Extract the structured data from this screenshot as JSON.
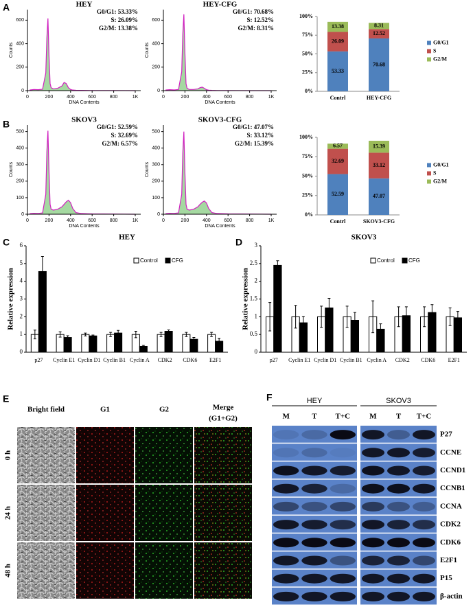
{
  "panel_labels": [
    "A",
    "B",
    "C",
    "D",
    "E",
    "F"
  ],
  "chart_data": [
    {
      "type": "flow",
      "title": "HEY",
      "annotations": [
        "G0/G1: 53.33%",
        "S: 26.09%",
        "G2/M: 13.38%"
      ],
      "x_label": "DNA Contents",
      "y_label": "Counts",
      "x": [
        20,
        60,
        100,
        140,
        170,
        180,
        190,
        200,
        210,
        220,
        240,
        280,
        320,
        340,
        360,
        380,
        400,
        420,
        450,
        500,
        600,
        800,
        1000
      ],
      "values": [
        5,
        10,
        8,
        12,
        150,
        450,
        615,
        300,
        60,
        25,
        15,
        20,
        40,
        70,
        60,
        25,
        10,
        5,
        3,
        2,
        1,
        1,
        0
      ],
      "xlim": [
        0,
        1000
      ],
      "xticks": [
        0,
        200,
        400,
        600,
        800,
        {
          "value": 1000,
          "label": "1K"
        }
      ],
      "ylim": [
        0,
        690
      ],
      "yticks": [
        0,
        200,
        400,
        600
      ]
    },
    {
      "type": "flow",
      "title": "HEY-CFG",
      "annotations": [
        "G0/G1: 70.68%",
        "S: 12.52%",
        "G2/M: 8.31%"
      ],
      "x_label": "DNA Contents",
      "y_label": "Counts",
      "x": [
        20,
        60,
        100,
        140,
        170,
        180,
        190,
        200,
        210,
        220,
        240,
        280,
        320,
        340,
        360,
        380,
        400,
        420,
        450,
        500,
        600,
        800,
        1000
      ],
      "values": [
        5,
        8,
        6,
        10,
        160,
        480,
        650,
        320,
        60,
        20,
        10,
        10,
        15,
        25,
        30,
        20,
        8,
        4,
        2,
        1,
        1,
        0,
        0
      ],
      "xlim": [
        0,
        1000
      ],
      "xticks": [
        0,
        200,
        400,
        600,
        800,
        {
          "value": 1000,
          "label": "1K"
        }
      ],
      "ylim": [
        0,
        690
      ],
      "yticks": [
        0,
        200,
        400,
        600
      ]
    },
    {
      "type": "stacked_bar",
      "categories": [
        "Contrl",
        "HEY-CFG"
      ],
      "legend": "right",
      "series": [
        {
          "name": "G0/G1",
          "color": "#4f81bd",
          "values": [
            53.33,
            70.68
          ]
        },
        {
          "name": "S",
          "color": "#c0504d",
          "values": [
            26.09,
            12.52
          ]
        },
        {
          "name": "G2/M",
          "color": "#9bbb59",
          "values": [
            13.38,
            8.31
          ]
        }
      ],
      "ylim": [
        0,
        100
      ],
      "yticks": [
        {
          "value": 0,
          "label": "0%"
        },
        {
          "value": 25,
          "label": "25%"
        },
        {
          "value": 50,
          "label": "50%"
        },
        {
          "value": 75,
          "label": "75%"
        },
        {
          "value": 100,
          "label": "100%"
        }
      ]
    },
    {
      "type": "flow",
      "title": "SKOV3",
      "annotations": [
        "G0/G1: 52.59%",
        "S: 32.69%",
        "G2/M: 6.57%"
      ],
      "x_label": "DNA Contents",
      "y_label": "Counts",
      "x": [
        20,
        60,
        100,
        140,
        170,
        180,
        190,
        200,
        210,
        220,
        240,
        280,
        320,
        340,
        360,
        380,
        400,
        420,
        450,
        500,
        600,
        800,
        1000
      ],
      "values": [
        3,
        6,
        5,
        8,
        120,
        380,
        505,
        260,
        60,
        30,
        25,
        30,
        45,
        60,
        75,
        85,
        70,
        35,
        10,
        4,
        2,
        1,
        0
      ],
      "xlim": [
        0,
        1000
      ],
      "xticks": [
        0,
        200,
        400,
        600,
        800,
        {
          "value": 1000,
          "label": "1K"
        }
      ],
      "ylim": [
        0,
        540
      ],
      "yticks": [
        0,
        100,
        200,
        300,
        400,
        500
      ]
    },
    {
      "type": "flow",
      "title": "SKOV3-CFG",
      "annotations": [
        "G0/G1: 47.07%",
        "S: 33.12%",
        "G2/M: 15.39%"
      ],
      "x_label": "DNA Contents",
      "y_label": "Counts",
      "x": [
        20,
        60,
        100,
        140,
        170,
        180,
        190,
        200,
        210,
        220,
        240,
        280,
        320,
        340,
        360,
        380,
        400,
        420,
        450,
        500,
        600,
        800,
        1000
      ],
      "values": [
        3,
        6,
        5,
        8,
        120,
        370,
        500,
        250,
        60,
        30,
        25,
        30,
        45,
        60,
        72,
        80,
        68,
        35,
        10,
        4,
        2,
        1,
        0
      ],
      "xlim": [
        0,
        1000
      ],
      "xticks": [
        0,
        200,
        400,
        600,
        800,
        {
          "value": 1000,
          "label": "1K"
        }
      ],
      "ylim": [
        0,
        540
      ],
      "yticks": [
        0,
        100,
        200,
        300,
        400,
        500
      ]
    },
    {
      "type": "stacked_bar",
      "categories": [
        "Contrl",
        "SKOV3-CFG"
      ],
      "legend": "right",
      "series": [
        {
          "name": "G0/G1",
          "color": "#4f81bd",
          "values": [
            52.59,
            47.07
          ]
        },
        {
          "name": "S",
          "color": "#c0504d",
          "values": [
            32.69,
            33.12
          ]
        },
        {
          "name": "G2/M",
          "color": "#9bbb59",
          "values": [
            6.57,
            15.39
          ]
        }
      ],
      "ylim": [
        0,
        100
      ],
      "yticks": [
        {
          "value": 0,
          "label": "0%"
        },
        {
          "value": 25,
          "label": "25%"
        },
        {
          "value": 50,
          "label": "50%"
        },
        {
          "value": 75,
          "label": "75%"
        },
        {
          "value": 100,
          "label": "100%"
        }
      ]
    },
    {
      "type": "bar",
      "title": "HEY",
      "y_label": "Relative expression",
      "legend": "top",
      "categories": [
        "p27",
        "Cyclin E1",
        "Cyclin D1",
        "Cyclin B1",
        "Cyclin A",
        "CDK2",
        "CDK6",
        "E2F1"
      ],
      "series": [
        {
          "name": "Control",
          "color": "#ffffff",
          "values": [
            1,
            1,
            1,
            1,
            1,
            1,
            1,
            1
          ],
          "errors": [
            0.25,
            0.15,
            0.08,
            0.12,
            0.18,
            0.12,
            0.12,
            0.12
          ]
        },
        {
          "name": "CFG",
          "color": "#000000",
          "values": [
            4.55,
            0.83,
            0.92,
            1.08,
            0.33,
            1.18,
            0.73,
            0.62
          ],
          "errors": [
            0.85,
            0.1,
            0.05,
            0.15,
            0.05,
            0.08,
            0.1,
            0.17
          ]
        }
      ],
      "ylim": [
        0,
        6
      ],
      "yticks": [
        0,
        1,
        2,
        3,
        4,
        5,
        6
      ]
    },
    {
      "type": "bar",
      "title": "SKOV3",
      "y_label": "Relative expression",
      "legend": "top",
      "categories": [
        "p27",
        "Cyclin E1",
        "Cyclin D1",
        "Cyclin B1",
        "Cyclin A",
        "CDK2",
        "CDK6",
        "E2F1"
      ],
      "series": [
        {
          "name": "Control",
          "color": "#ffffff",
          "values": [
            1,
            1,
            1,
            1,
            1,
            1,
            1,
            1
          ],
          "errors": [
            0.4,
            0.32,
            0.3,
            0.3,
            0.45,
            0.28,
            0.28,
            0.25
          ]
        },
        {
          "name": "CFG",
          "color": "#000000",
          "values": [
            2.45,
            0.83,
            1.25,
            0.9,
            0.65,
            1.03,
            1.12,
            0.97
          ],
          "errors": [
            0.13,
            0.18,
            0.27,
            0.22,
            0.15,
            0.25,
            0.22,
            0.18
          ]
        }
      ],
      "ylim": [
        0,
        3
      ],
      "yticks": [
        0,
        0.5,
        1,
        1.5,
        2,
        2.5,
        3
      ]
    }
  ],
  "microscopy": {
    "column_headers": [
      "Bright field",
      "G1",
      "G2",
      "Merge"
    ],
    "merge_subheader": "(G1+G2)",
    "row_labels": [
      "0 h",
      "24 h",
      "48 h"
    ]
  },
  "western_blot": {
    "groups": [
      "HEY",
      "SKOV3"
    ],
    "lanes": [
      "M",
      "T",
      "T+C"
    ],
    "proteins": [
      "P27",
      "CCNE",
      "CCND1",
      "CCNB1",
      "CCNA",
      "CDK2",
      "CDK6",
      "E2F1",
      "P15",
      "β-actin"
    ]
  }
}
